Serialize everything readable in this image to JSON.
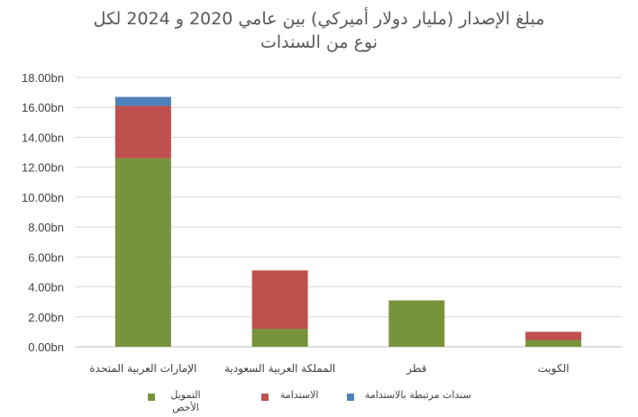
{
  "chart_data": {
    "type": "bar",
    "stacked": true,
    "title": "مبلغ الإصدار (مليار دولار أميركي) بين عامي 2020 و 2024 لكل نوع من السندات",
    "title_lines": [
      "مبلغ الإصدار (مليار دولار أميركي) بين عامي 2020 و 2024 لكل",
      "نوع من السندات"
    ],
    "categories": [
      "الإمارات العربية المتحدة",
      "المملكة العربية السعودية",
      "قطر",
      "الكويت"
    ],
    "series": [
      {
        "name": "التمويل الأخص",
        "color": "#77933C",
        "values": [
          12.6,
          1.2,
          3.1,
          0.45
        ]
      },
      {
        "name": "الاستدامة",
        "color": "#C0504D",
        "values": [
          3.5,
          3.9,
          0.0,
          0.55
        ]
      },
      {
        "name": "سندات مرتبطة بالاستدامة",
        "color": "#4F81BD",
        "values": [
          0.6,
          0.0,
          0.0,
          0.0
        ]
      }
    ],
    "ylim": [
      0,
      18
    ],
    "yticks": [
      "0.00bn",
      "2.00bn",
      "4.00bn",
      "6.00bn",
      "8.00bn",
      "10.00bn",
      "12.00bn",
      "14.00bn",
      "16.00bn",
      "18.00bn"
    ],
    "ytick_values": [
      0,
      2,
      4,
      6,
      8,
      10,
      12,
      14,
      16,
      18
    ],
    "grid": true,
    "legend_position": "bottom"
  }
}
